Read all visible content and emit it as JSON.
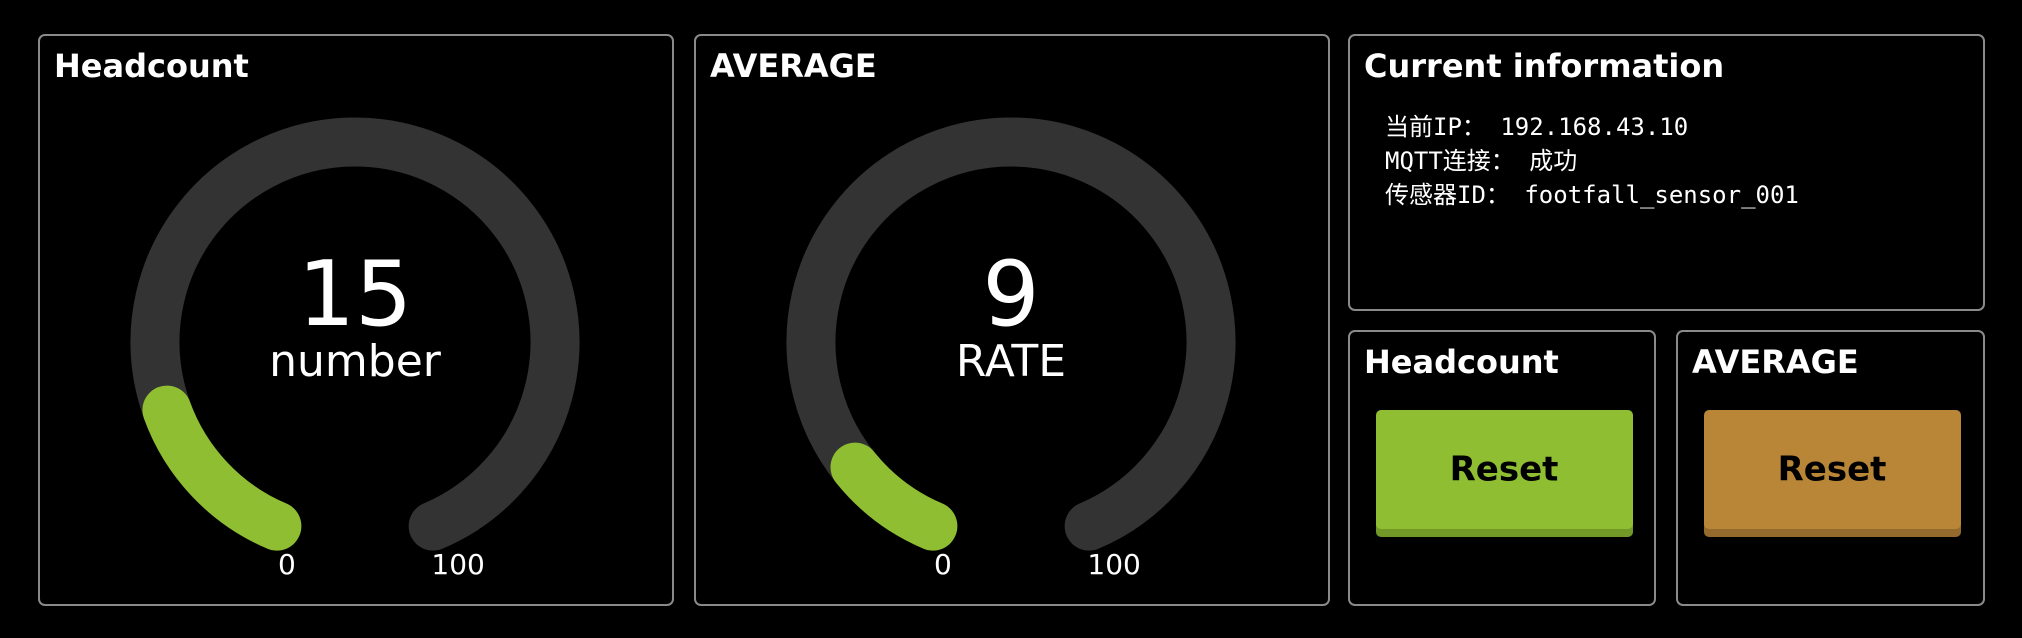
{
  "gauges": [
    {
      "title": "Headcount",
      "value": 15,
      "unit": "number",
      "min": 0,
      "max": 100,
      "color": "#8fbe32"
    },
    {
      "title": "AVERAGE",
      "value": 9,
      "unit": "RATE",
      "min": 0,
      "max": 100,
      "color": "#8fbe32"
    }
  ],
  "info": {
    "title": "Current information",
    "lines": [
      "当前IP： 192.168.43.10",
      "MQTT连接： 成功",
      "传感器ID： footfall_sensor_001"
    ]
  },
  "buttons": [
    {
      "title": "Headcount",
      "label": "Reset",
      "color": "#8fbe32"
    },
    {
      "title": "AVERAGE",
      "label": "Reset",
      "color": "#b98638"
    }
  ]
}
